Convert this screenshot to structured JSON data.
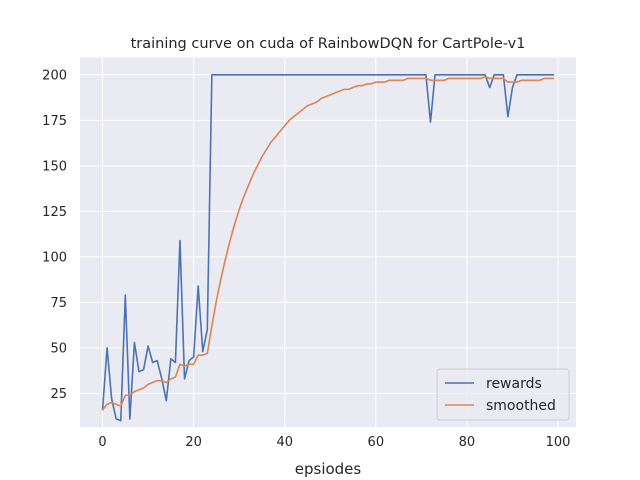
{
  "chart_data": {
    "type": "line",
    "title": "training curve on cuda of RainbowDQN for CartPole-v1",
    "xlabel": "epsiodes",
    "ylabel": "",
    "xlim": [
      -4.95,
      103.95
    ],
    "ylim": [
      6.45,
      209.45
    ],
    "xticks": [
      0,
      20,
      40,
      60,
      80,
      100
    ],
    "yticks": [
      25,
      50,
      75,
      100,
      125,
      150,
      175,
      200
    ],
    "grid": true,
    "legend_position": "lower-right",
    "colors": {
      "background": "#eaeaf2",
      "grid": "#ffffff",
      "rewards": "#4c72b0",
      "smoothed": "#dd8452"
    },
    "series": [
      {
        "name": "rewards",
        "x": [
          0,
          1,
          2,
          3,
          4,
          5,
          6,
          7,
          8,
          9,
          10,
          11,
          12,
          13,
          14,
          15,
          16,
          17,
          18,
          19,
          20,
          21,
          22,
          23,
          24,
          25,
          26,
          27,
          28,
          29,
          30,
          31,
          32,
          33,
          34,
          35,
          36,
          37,
          38,
          39,
          40,
          41,
          42,
          43,
          44,
          45,
          46,
          47,
          48,
          49,
          50,
          51,
          52,
          53,
          54,
          55,
          56,
          57,
          58,
          59,
          60,
          61,
          62,
          63,
          64,
          65,
          66,
          67,
          68,
          69,
          70,
          71,
          72,
          73,
          74,
          75,
          76,
          77,
          78,
          79,
          80,
          81,
          82,
          83,
          84,
          85,
          86,
          87,
          88,
          89,
          90,
          91,
          92,
          93,
          94,
          95,
          96,
          97,
          98,
          99
        ],
        "values": [
          16,
          50,
          22,
          11,
          10,
          79,
          11,
          53,
          37,
          38,
          51,
          42,
          43,
          33,
          21,
          44,
          42,
          109,
          33,
          43,
          45,
          84,
          48,
          60,
          200,
          200,
          200,
          200,
          200,
          200,
          200,
          200,
          200,
          200,
          200,
          200,
          200,
          200,
          200,
          200,
          200,
          200,
          200,
          200,
          200,
          200,
          200,
          200,
          200,
          200,
          200,
          200,
          200,
          200,
          200,
          200,
          200,
          200,
          200,
          200,
          200,
          200,
          200,
          200,
          200,
          200,
          200,
          200,
          200,
          200,
          200,
          200,
          174,
          200,
          200,
          200,
          200,
          200,
          200,
          200,
          200,
          200,
          200,
          200,
          200,
          193,
          200,
          200,
          200,
          177,
          193,
          200,
          200,
          200,
          200,
          200,
          200,
          200,
          200,
          200
        ]
      },
      {
        "name": "smoothed",
        "x": [
          0,
          1,
          2,
          3,
          4,
          5,
          6,
          7,
          8,
          9,
          10,
          11,
          12,
          13,
          14,
          15,
          16,
          17,
          18,
          19,
          20,
          21,
          22,
          23,
          24,
          25,
          26,
          27,
          28,
          29,
          30,
          31,
          32,
          33,
          34,
          35,
          36,
          37,
          38,
          39,
          40,
          41,
          42,
          43,
          44,
          45,
          46,
          47,
          48,
          49,
          50,
          51,
          52,
          53,
          54,
          55,
          56,
          57,
          58,
          59,
          60,
          61,
          62,
          63,
          64,
          65,
          66,
          67,
          68,
          69,
          70,
          71,
          72,
          73,
          74,
          75,
          76,
          77,
          78,
          79,
          80,
          81,
          82,
          83,
          84,
          85,
          86,
          87,
          88,
          89,
          90,
          91,
          92,
          93,
          94,
          95,
          96,
          97,
          98,
          99
        ],
        "values": [
          16,
          19,
          20,
          19,
          18,
          24,
          24,
          26,
          27,
          28,
          30,
          31,
          32,
          32,
          31,
          33,
          34,
          41,
          40,
          41,
          41,
          46,
          46,
          47,
          62,
          76,
          88,
          99,
          109,
          118,
          126,
          133,
          139,
          145,
          150,
          155,
          159,
          163,
          166,
          169,
          172,
          175,
          177,
          179,
          181,
          183,
          184,
          185,
          187,
          188,
          189,
          190,
          191,
          192,
          192,
          193,
          194,
          194,
          195,
          195,
          196,
          196,
          196,
          197,
          197,
          197,
          197,
          198,
          198,
          198,
          198,
          198,
          197,
          197,
          197,
          197,
          198,
          198,
          198,
          198,
          198,
          198,
          198,
          198,
          199,
          198,
          198,
          198,
          198,
          196,
          196,
          196,
          197,
          197,
          197,
          197,
          197,
          198,
          198,
          198
        ]
      }
    ]
  }
}
